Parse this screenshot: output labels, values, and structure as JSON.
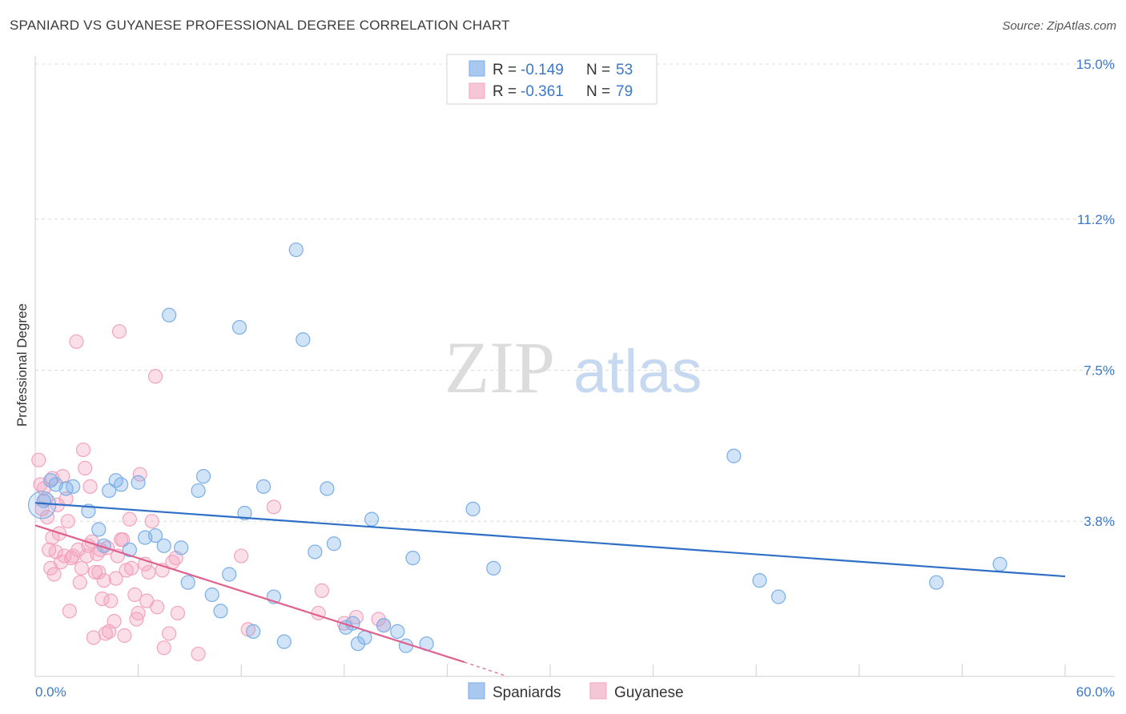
{
  "header": {
    "title": "SPANIARD VS GUYANESE PROFESSIONAL DEGREE CORRELATION CHART",
    "source": "Source: ZipAtlas.com"
  },
  "watermark": {
    "zip": "ZIP",
    "atlas": "atlas"
  },
  "legend": {
    "rows": [
      {
        "r_label": "R =",
        "r_value": "-0.149",
        "n_label": "N =",
        "n_value": "53",
        "color": "#a9c8ef"
      },
      {
        "r_label": "R =",
        "r_value": "-0.361",
        "n_label": "N =",
        "n_value": "79",
        "color": "#f5b8cc"
      }
    ]
  },
  "bottom_legend": {
    "spaniards": "Spaniards",
    "guyanese": "Guyanese"
  },
  "chart_data": {
    "type": "scatter",
    "xlabel": "",
    "ylabel": "Professional Degree",
    "xlim": [
      0,
      60
    ],
    "ylim": [
      0,
      15
    ],
    "x_tick_labels": [
      "0.0%",
      "60.0%"
    ],
    "y_ticks": [
      3.8,
      7.5,
      11.2,
      15.0
    ],
    "y_tick_labels": [
      "3.8%",
      "7.5%",
      "11.2%",
      "15.0%"
    ],
    "grid": true,
    "series": [
      {
        "name": "Spaniards",
        "color": "#7aaee8",
        "line_color": "#2f6fc6",
        "trend": [
          [
            0,
            4.25
          ],
          [
            60,
            2.45
          ]
        ],
        "points": [
          [
            0.5,
            4.3
          ],
          [
            0.9,
            4.8
          ],
          [
            1.2,
            4.7
          ],
          [
            1.8,
            4.6
          ],
          [
            2.2,
            4.65
          ],
          [
            3.1,
            4.05
          ],
          [
            3.7,
            3.6
          ],
          [
            4.0,
            3.2
          ],
          [
            4.3,
            4.55
          ],
          [
            4.7,
            4.8
          ],
          [
            5.0,
            4.7
          ],
          [
            5.5,
            3.1
          ],
          [
            6.0,
            4.75
          ],
          [
            6.4,
            3.4
          ],
          [
            7.0,
            3.45
          ],
          [
            7.5,
            3.2
          ],
          [
            7.8,
            8.85
          ],
          [
            8.5,
            3.15
          ],
          [
            8.9,
            2.3
          ],
          [
            9.5,
            4.55
          ],
          [
            9.8,
            4.9
          ],
          [
            10.3,
            2.0
          ],
          [
            10.8,
            1.6
          ],
          [
            11.3,
            2.5
          ],
          [
            11.9,
            8.55
          ],
          [
            12.2,
            4.0
          ],
          [
            12.7,
            1.1
          ],
          [
            13.3,
            4.65
          ],
          [
            13.9,
            1.95
          ],
          [
            14.5,
            0.85
          ],
          [
            15.2,
            10.45
          ],
          [
            15.6,
            8.25
          ],
          [
            16.3,
            3.05
          ],
          [
            17.0,
            4.6
          ],
          [
            17.4,
            3.25
          ],
          [
            18.1,
            1.2
          ],
          [
            18.5,
            1.3
          ],
          [
            18.8,
            0.8
          ],
          [
            19.2,
            0.95
          ],
          [
            19.6,
            3.85
          ],
          [
            20.3,
            1.25
          ],
          [
            21.1,
            1.1
          ],
          [
            21.6,
            0.75
          ],
          [
            22.0,
            2.9
          ],
          [
            22.8,
            0.8
          ],
          [
            25.5,
            4.1
          ],
          [
            26.7,
            2.65
          ],
          [
            40.7,
            5.4
          ],
          [
            42.2,
            2.35
          ],
          [
            43.3,
            1.95
          ],
          [
            52.5,
            2.3
          ],
          [
            56.2,
            2.75
          ],
          [
            24.5,
            14.95
          ]
        ]
      },
      {
        "name": "Guyanese",
        "color": "#f3a3bd",
        "line_color": "#e0608e",
        "trend": [
          [
            0,
            3.7
          ],
          [
            25,
            0.35
          ]
        ],
        "trend_ext": [
          [
            25,
            0.35
          ],
          [
            27.5,
            0.0
          ]
        ],
        "points": [
          [
            0.2,
            5.3
          ],
          [
            0.3,
            4.7
          ],
          [
            0.4,
            4.1
          ],
          [
            0.6,
            4.35
          ],
          [
            0.7,
            3.9
          ],
          [
            0.8,
            3.1
          ],
          [
            0.9,
            2.65
          ],
          [
            1.0,
            3.4
          ],
          [
            1.1,
            2.5
          ],
          [
            1.2,
            3.05
          ],
          [
            1.3,
            4.2
          ],
          [
            1.4,
            3.5
          ],
          [
            1.5,
            2.8
          ],
          [
            1.6,
            4.9
          ],
          [
            1.7,
            2.95
          ],
          [
            1.8,
            4.35
          ],
          [
            1.9,
            3.8
          ],
          [
            2.0,
            1.6
          ],
          [
            2.1,
            2.9
          ],
          [
            2.2,
            2.95
          ],
          [
            2.4,
            8.2
          ],
          [
            2.5,
            3.1
          ],
          [
            2.6,
            2.3
          ],
          [
            2.7,
            2.65
          ],
          [
            2.8,
            5.55
          ],
          [
            2.9,
            5.1
          ],
          [
            3.0,
            2.95
          ],
          [
            3.1,
            3.2
          ],
          [
            3.2,
            4.65
          ],
          [
            3.3,
            3.3
          ],
          [
            3.4,
            0.95
          ],
          [
            3.5,
            2.55
          ],
          [
            3.6,
            3.0
          ],
          [
            3.7,
            2.55
          ],
          [
            3.8,
            3.1
          ],
          [
            3.9,
            1.9
          ],
          [
            4.0,
            2.35
          ],
          [
            4.1,
            1.05
          ],
          [
            4.2,
            3.15
          ],
          [
            4.3,
            1.1
          ],
          [
            4.4,
            1.85
          ],
          [
            4.6,
            1.35
          ],
          [
            4.7,
            2.4
          ],
          [
            4.8,
            2.95
          ],
          [
            4.9,
            8.45
          ],
          [
            5.0,
            3.35
          ],
          [
            5.1,
            3.35
          ],
          [
            5.2,
            1.0
          ],
          [
            5.3,
            2.6
          ],
          [
            5.5,
            3.85
          ],
          [
            5.6,
            2.65
          ],
          [
            5.8,
            2.0
          ],
          [
            5.9,
            1.4
          ],
          [
            6.0,
            1.55
          ],
          [
            6.1,
            4.95
          ],
          [
            6.4,
            2.75
          ],
          [
            6.5,
            1.85
          ],
          [
            6.6,
            2.55
          ],
          [
            6.8,
            3.8
          ],
          [
            7.0,
            7.35
          ],
          [
            7.1,
            1.7
          ],
          [
            7.4,
            2.6
          ],
          [
            7.5,
            0.7
          ],
          [
            7.8,
            1.05
          ],
          [
            8.0,
            2.8
          ],
          [
            8.2,
            2.9
          ],
          [
            8.3,
            1.55
          ],
          [
            9.5,
            0.55
          ],
          [
            12.0,
            2.95
          ],
          [
            12.4,
            1.15
          ],
          [
            13.9,
            4.15
          ],
          [
            16.5,
            1.55
          ],
          [
            16.7,
            2.1
          ],
          [
            18.0,
            1.3
          ],
          [
            18.7,
            1.45
          ],
          [
            20.0,
            1.4
          ],
          [
            20.3,
            1.25
          ],
          [
            0.5,
            4.6
          ],
          [
            1.0,
            4.85
          ]
        ]
      }
    ]
  }
}
